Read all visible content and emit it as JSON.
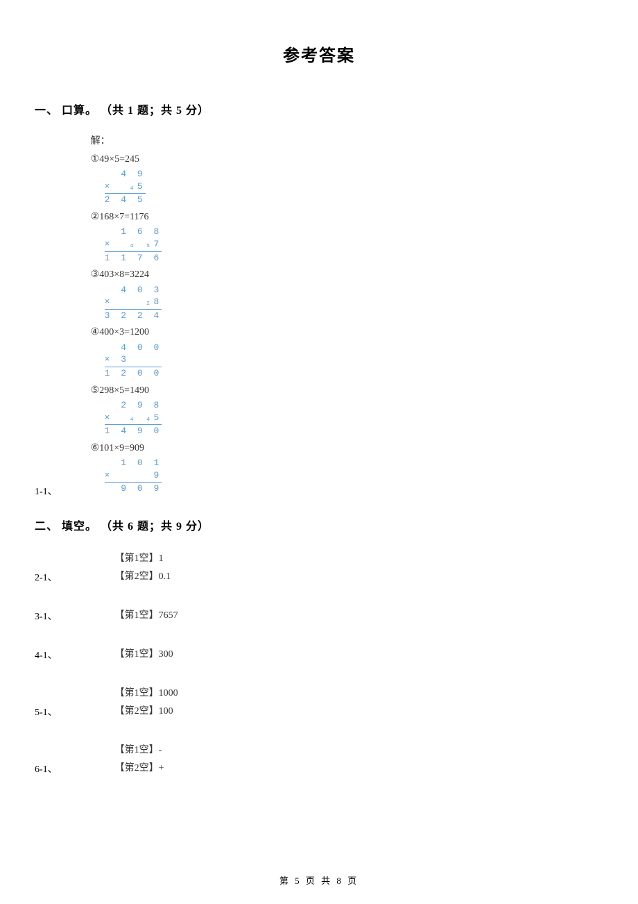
{
  "title": "参考答案",
  "section1": {
    "header": "一、 口算。 （共 1 题；共 5 分）",
    "label": "1-1、",
    "solution_label": "解：",
    "problems": [
      {
        "text": "①49×5=245",
        "top": "  4 9",
        "mult": "×  ₄5",
        "result": "2 4 5"
      },
      {
        "text": "②168×7=1176",
        "top": "  1 6 8",
        "mult": "×  ₄ ₅7",
        "result": "1 1 7 6"
      },
      {
        "text": "③403×8=3224",
        "top": "  4 0 3",
        "mult": "×    ₂8",
        "result": "3 2 2 4"
      },
      {
        "text": "④400×3=1200",
        "top": "  4 0 0",
        "mult": "× 3    ",
        "result": "1 2 0 0"
      },
      {
        "text": "⑤298×5=1490",
        "top": "  2 9 8",
        "mult": "×  ₄ ₄5",
        "result": "1 4 9 0"
      },
      {
        "text": "⑥101×9=909",
        "top": "  1 0 1",
        "mult": "×     9",
        "result": "  9 0 9"
      }
    ]
  },
  "section2": {
    "header": "二、 填空。 （共 6 题；共 9 分）",
    "items": [
      {
        "label": "2-1、",
        "lines": [
          "【第1空】1",
          "【第2空】0.1"
        ]
      },
      {
        "label": "3-1、",
        "lines": [
          "【第1空】7657"
        ]
      },
      {
        "label": "4-1、",
        "lines": [
          "【第1空】300"
        ]
      },
      {
        "label": "5-1、",
        "lines": [
          "【第1空】1000",
          "【第2空】100"
        ]
      },
      {
        "label": "6-1、",
        "lines": [
          "【第1空】-",
          "【第2空】+"
        ]
      }
    ]
  },
  "footer": "第 5 页 共 8 页"
}
